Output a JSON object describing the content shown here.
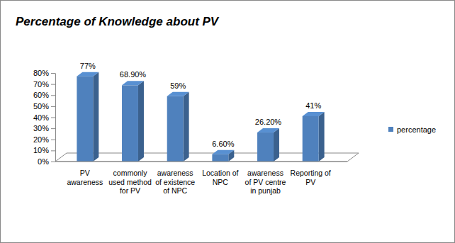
{
  "chart_data": {
    "type": "bar",
    "title": "Percentage of Knowledge about PV",
    "categories": [
      "PV awareness",
      "commonly used method for PV",
      "awareness of existence of NPC",
      "Location of NPC",
      "awareness of PV centre in punjab",
      "Reporting of PV"
    ],
    "series": [
      {
        "name": "percentage",
        "color": "#4f81bd",
        "values": [
          77,
          68.9,
          59,
          6.6,
          26.2,
          41
        ],
        "value_labels": [
          "77%",
          "68.90%",
          "59%",
          "6.60%",
          "26.20%",
          "41%"
        ]
      }
    ],
    "ylim": [
      0,
      80
    ],
    "yticks": [
      {
        "value": 0,
        "label": "0%"
      },
      {
        "value": 10,
        "label": "10%"
      },
      {
        "value": 20,
        "label": "20%"
      },
      {
        "value": 30,
        "label": "30%"
      },
      {
        "value": 40,
        "label": "40%"
      },
      {
        "value": 50,
        "label": "50%"
      },
      {
        "value": 60,
        "label": "60%"
      },
      {
        "value": 70,
        "label": "70%"
      },
      {
        "value": 80,
        "label": "80%"
      }
    ],
    "grid": false,
    "legend": "right",
    "data_labels": true
  }
}
